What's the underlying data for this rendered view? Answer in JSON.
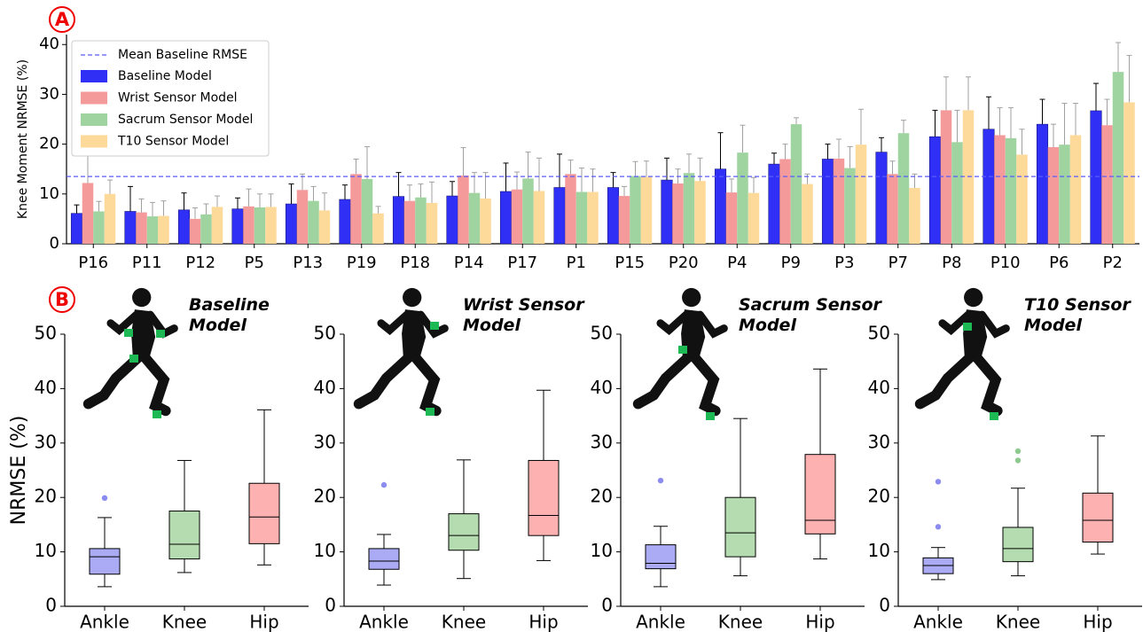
{
  "chart_data": [
    {
      "type": "bar",
      "panel_label": "A",
      "ylabel": "Knee Moment NRMSE (%)",
      "categories": [
        "P16",
        "P11",
        "P12",
        "P5",
        "P13",
        "P19",
        "P18",
        "P14",
        "P17",
        "P1",
        "P15",
        "P20",
        "P4",
        "P9",
        "P3",
        "P7",
        "P8",
        "P10",
        "P6",
        "P2"
      ],
      "series": [
        {
          "name": "Baseline Model",
          "color": "#2f2ff5",
          "error_color": "#000000",
          "values": [
            6.1,
            6.5,
            6.8,
            7.0,
            8.0,
            8.9,
            9.5,
            9.6,
            10.5,
            11.3,
            11.3,
            12.8,
            15.0,
            16.0,
            17.0,
            18.4,
            21.5,
            23.0,
            24.0,
            26.7
          ],
          "errors": [
            1.7,
            5.0,
            3.4,
            2.2,
            4.0,
            2.9,
            4.8,
            2.9,
            5.7,
            6.7,
            3.0,
            4.4,
            7.3,
            2.2,
            3.0,
            2.9,
            5.3,
            6.5,
            5.0,
            5.5
          ]
        },
        {
          "name": "Wrist Sensor Model",
          "color": "#f59a9a",
          "error_color": "#a0a0a0",
          "values": [
            12.2,
            6.3,
            5.0,
            7.5,
            10.8,
            14.0,
            8.6,
            13.7,
            10.9,
            14.0,
            9.6,
            12.1,
            10.3,
            17.0,
            17.1,
            14.0,
            26.8,
            21.8,
            19.4,
            23.8
          ],
          "errors": [
            6.0,
            2.7,
            2.2,
            3.5,
            3.2,
            3.0,
            3.2,
            5.6,
            3.5,
            2.8,
            1.9,
            2.9,
            2.7,
            3.0,
            3.9,
            2.6,
            6.7,
            5.5,
            4.6,
            5.2
          ]
        },
        {
          "name": "Sacrum Sensor Model",
          "color": "#9fd39f",
          "error_color": "#a0a0a0",
          "values": [
            6.5,
            5.5,
            5.9,
            7.3,
            8.6,
            13.0,
            9.3,
            10.2,
            13.1,
            10.4,
            13.6,
            14.2,
            18.3,
            24.0,
            15.2,
            22.2,
            20.4,
            21.2,
            19.9,
            34.5
          ],
          "errors": [
            2.0,
            2.8,
            2.1,
            2.7,
            2.9,
            6.5,
            2.7,
            4.1,
            5.3,
            4.8,
            2.9,
            3.8,
            5.5,
            1.3,
            4.3,
            2.6,
            6.4,
            6.1,
            8.3,
            5.9
          ]
        },
        {
          "name": "T10 Sensor Model",
          "color": "#fdd99a",
          "error_color": "#a0a0a0",
          "values": [
            10.0,
            5.6,
            7.4,
            7.4,
            6.7,
            6.1,
            8.2,
            9.1,
            10.6,
            10.4,
            13.4,
            12.6,
            10.2,
            12.0,
            19.9,
            11.2,
            26.8,
            17.9,
            21.8,
            28.4
          ],
          "errors": [
            2.8,
            3.0,
            2.2,
            2.6,
            3.5,
            1.4,
            4.2,
            5.2,
            6.6,
            4.6,
            3.2,
            4.6,
            3.1,
            2.0,
            7.1,
            2.8,
            6.7,
            5.1,
            6.4,
            9.4
          ]
        }
      ],
      "reference_line": {
        "name": "Mean Baseline RMSE",
        "value": 13.5,
        "color": "#5a5aff"
      },
      "ylim": [
        0,
        42
      ],
      "yticks": [
        0,
        10,
        20,
        30,
        40
      ],
      "legend": "upper left"
    },
    {
      "type": "box",
      "panel_label": "B",
      "title": "Baseline Model",
      "ylabel": "NRMSE (%)",
      "categories": [
        "Ankle",
        "Knee",
        "Hip"
      ],
      "colors": [
        "#aaaaf5",
        "#b5dcb0",
        "#fdb1b1"
      ],
      "flier_colors": [
        "#8c8cf0",
        "#8fc98f",
        "#f09090"
      ],
      "boxes": [
        {
          "whislo": 3.6,
          "q1": 5.9,
          "med": 9.1,
          "q3": 10.6,
          "whishi": 16.3,
          "fliers": [
            19.9
          ]
        },
        {
          "whislo": 6.2,
          "q1": 8.7,
          "med": 11.4,
          "q3": 17.5,
          "whishi": 26.8,
          "fliers": []
        },
        {
          "whislo": 7.6,
          "q1": 11.5,
          "med": 16.4,
          "q3": 22.6,
          "whishi": 36.1,
          "fliers": []
        }
      ],
      "ylim": [
        0,
        50
      ],
      "yticks": [
        0,
        10,
        20,
        30,
        40,
        50
      ]
    },
    {
      "type": "box",
      "title": "Wrist Sensor Model",
      "categories": [
        "Ankle",
        "Knee",
        "Hip"
      ],
      "colors": [
        "#aaaaf5",
        "#b5dcb0",
        "#fdb1b1"
      ],
      "flier_colors": [
        "#8c8cf0",
        "#8fc98f",
        "#f09090"
      ],
      "boxes": [
        {
          "whislo": 3.9,
          "q1": 6.8,
          "med": 8.3,
          "q3": 10.6,
          "whishi": 13.2,
          "fliers": [
            22.3
          ]
        },
        {
          "whislo": 5.1,
          "q1": 10.3,
          "med": 13.0,
          "q3": 17.0,
          "whishi": 26.9,
          "fliers": []
        },
        {
          "whislo": 8.4,
          "q1": 13.0,
          "med": 16.7,
          "q3": 26.8,
          "whishi": 39.7,
          "fliers": []
        }
      ],
      "ylim": [
        0,
        50
      ],
      "yticks": [
        0,
        10,
        20,
        30,
        40,
        50
      ]
    },
    {
      "type": "box",
      "title": "Sacrum Sensor Model",
      "categories": [
        "Ankle",
        "Knee",
        "Hip"
      ],
      "colors": [
        "#aaaaf5",
        "#b5dcb0",
        "#fdb1b1"
      ],
      "flier_colors": [
        "#8c8cf0",
        "#8fc98f",
        "#f09090"
      ],
      "boxes": [
        {
          "whislo": 3.6,
          "q1": 6.9,
          "med": 7.9,
          "q3": 11.3,
          "whishi": 14.7,
          "fliers": [
            23.1
          ]
        },
        {
          "whislo": 5.6,
          "q1": 9.1,
          "med": 13.5,
          "q3": 20.0,
          "whishi": 34.5,
          "fliers": []
        },
        {
          "whislo": 8.7,
          "q1": 13.3,
          "med": 15.8,
          "q3": 27.9,
          "whishi": 43.6,
          "fliers": []
        }
      ],
      "ylim": [
        0,
        50
      ],
      "yticks": [
        0,
        10,
        20,
        30,
        40,
        50
      ]
    },
    {
      "type": "box",
      "title": "T10 Sensor Model",
      "categories": [
        "Ankle",
        "Knee",
        "Hip"
      ],
      "colors": [
        "#aaaaf5",
        "#b5dcb0",
        "#fdb1b1"
      ],
      "flier_colors": [
        "#8c8cf0",
        "#8fc98f",
        "#f09090"
      ],
      "boxes": [
        {
          "whislo": 4.9,
          "q1": 6.0,
          "med": 7.5,
          "q3": 8.9,
          "whishi": 10.8,
          "fliers": [
            14.6,
            22.9
          ]
        },
        {
          "whislo": 5.6,
          "q1": 8.2,
          "med": 10.6,
          "q3": 14.5,
          "whishi": 21.7,
          "fliers": [
            26.8,
            28.5
          ]
        },
        {
          "whislo": 9.6,
          "q1": 11.8,
          "med": 15.8,
          "q3": 20.8,
          "whishi": 31.3,
          "fliers": []
        }
      ],
      "ylim": [
        0,
        50
      ],
      "yticks": [
        0,
        10,
        20,
        30,
        40,
        50
      ]
    }
  ]
}
